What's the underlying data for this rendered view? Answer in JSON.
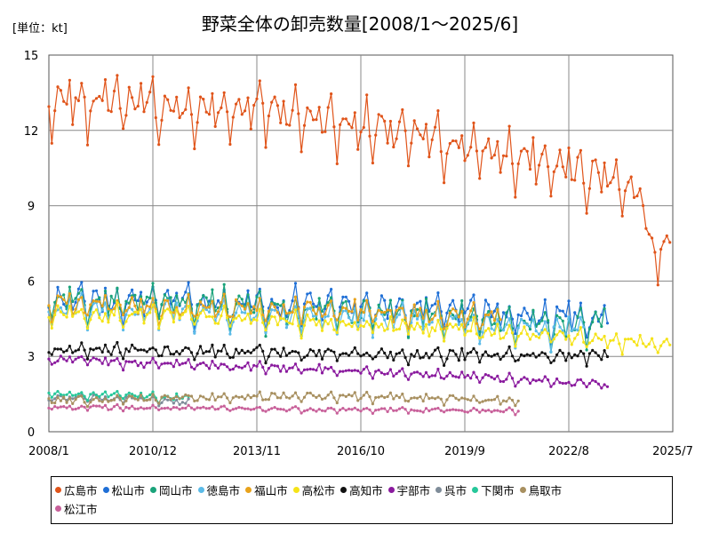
{
  "chart_data": {
    "type": "line",
    "title": "野菜全体の卸売数量[2008/1～2025/6]",
    "unit_label": "[単位：kt]",
    "x_ticks": [
      "2008/1",
      "2010/12",
      "2013/11",
      "2016/10",
      "2019/9",
      "2022/8",
      "2025/7"
    ],
    "y_ticks": [
      "0",
      "3",
      "6",
      "9",
      "12",
      "15"
    ],
    "ylim": [
      0,
      15
    ],
    "grid": true,
    "legend_position": "bottom",
    "series": [
      {
        "name": "広島市",
        "color": "#e0541a",
        "end": "2025/6",
        "anchors": [
          [
            0,
            12.6
          ],
          [
            24,
            12.8
          ],
          [
            48,
            12.3
          ],
          [
            72,
            12.5
          ],
          [
            96,
            11.9
          ],
          [
            120,
            11.4
          ],
          [
            144,
            10.8
          ],
          [
            168,
            10.2
          ],
          [
            180,
            9.9
          ],
          [
            192,
            9.6
          ],
          [
            200,
            8.8
          ],
          [
            203,
            6.6
          ],
          [
            216,
            6.7
          ],
          [
            209,
            7.4
          ]
        ],
        "amp": 1.4,
        "noise": 0.35
      },
      {
        "name": "松山市",
        "color": "#1f6fd6",
        "end": "2023/9",
        "anchors": [
          [
            0,
            5.0
          ],
          [
            36,
            4.9
          ],
          [
            72,
            4.8
          ],
          [
            108,
            4.7
          ],
          [
            144,
            4.5
          ],
          [
            168,
            4.3
          ],
          [
            188,
            4.3
          ]
        ],
        "amp": 0.85,
        "noise": 0.3
      },
      {
        "name": "岡山市",
        "color": "#1aa37a",
        "end": "2023/8",
        "anchors": [
          [
            0,
            5.1
          ],
          [
            36,
            4.9
          ],
          [
            72,
            4.7
          ],
          [
            108,
            4.5
          ],
          [
            144,
            4.3
          ],
          [
            168,
            4.0
          ],
          [
            187,
            4.0
          ]
        ],
        "amp": 0.85,
        "noise": 0.3
      },
      {
        "name": "徳島市",
        "color": "#5bbbe8",
        "end": "2023/1",
        "anchors": [
          [
            0,
            4.7
          ],
          [
            36,
            4.6
          ],
          [
            72,
            4.5
          ],
          [
            108,
            4.3
          ],
          [
            144,
            4.1
          ],
          [
            168,
            3.9
          ],
          [
            180,
            3.9
          ]
        ],
        "amp": 0.7,
        "noise": 0.25
      },
      {
        "name": "福山市",
        "color": "#e8a21b",
        "end": "2020/9",
        "anchors": [
          [
            0,
            4.9
          ],
          [
            36,
            4.8
          ],
          [
            72,
            4.7
          ],
          [
            108,
            4.6
          ],
          [
            140,
            4.4
          ],
          [
            152,
            4.4
          ]
        ],
        "amp": 0.55,
        "noise": 0.25
      },
      {
        "name": "高松市",
        "color": "#f5e318",
        "end": "2025/6",
        "anchors": [
          [
            0,
            4.6
          ],
          [
            36,
            4.5
          ],
          [
            72,
            4.3
          ],
          [
            108,
            4.1
          ],
          [
            144,
            3.9
          ],
          [
            168,
            3.7
          ],
          [
            200,
            3.4
          ],
          [
            209,
            3.5
          ]
        ],
        "amp": 0.45,
        "noise": 0.2
      },
      {
        "name": "高知市",
        "color": "#111111",
        "end": "2023/9",
        "anchors": [
          [
            0,
            3.2
          ],
          [
            48,
            3.1
          ],
          [
            96,
            3.0
          ],
          [
            144,
            2.95
          ],
          [
            188,
            2.95
          ]
        ],
        "amp": 0.3,
        "noise": 0.15
      },
      {
        "name": "宇部市",
        "color": "#8a1a9e",
        "end": "2023/9",
        "anchors": [
          [
            0,
            2.8
          ],
          [
            48,
            2.6
          ],
          [
            96,
            2.4
          ],
          [
            144,
            2.1
          ],
          [
            188,
            1.8
          ]
        ],
        "amp": 0.22,
        "noise": 0.1
      },
      {
        "name": "呉市",
        "color": "#7f8c99",
        "end": "2011/12",
        "anchors": [
          [
            0,
            1.3
          ],
          [
            24,
            1.3
          ],
          [
            47,
            1.1
          ]
        ],
        "amp": 0.15,
        "noise": 0.08
      },
      {
        "name": "下関市",
        "color": "#26c79a",
        "end": "2011/12",
        "anchors": [
          [
            0,
            1.45
          ],
          [
            24,
            1.4
          ],
          [
            47,
            1.3
          ]
        ],
        "amp": 0.18,
        "noise": 0.08
      },
      {
        "name": "鳥取市",
        "color": "#a89060",
        "end": "2021/3",
        "anchors": [
          [
            0,
            1.2
          ],
          [
            48,
            1.3
          ],
          [
            96,
            1.35
          ],
          [
            158,
            1.2
          ]
        ],
        "amp": 0.2,
        "noise": 0.1
      },
      {
        "name": "松江市",
        "color": "#c8609a",
        "end": "2021/3",
        "anchors": [
          [
            0,
            0.95
          ],
          [
            48,
            0.9
          ],
          [
            96,
            0.85
          ],
          [
            158,
            0.8
          ]
        ],
        "amp": 0.1,
        "noise": 0.06
      }
    ]
  }
}
